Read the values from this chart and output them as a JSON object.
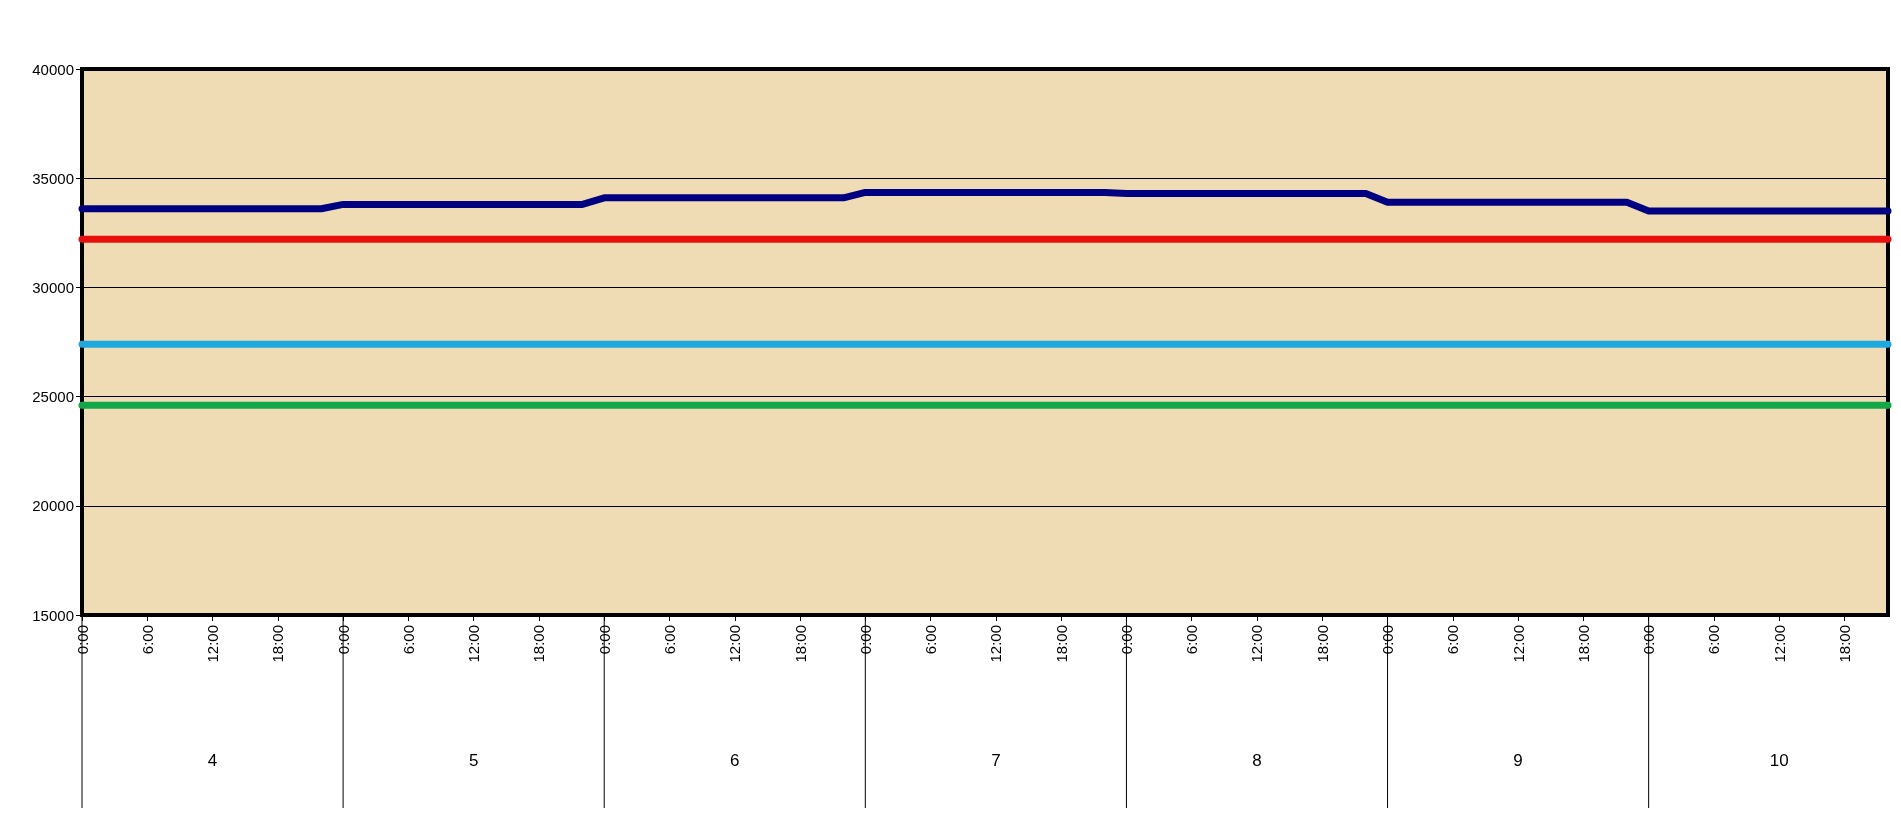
{
  "chart_data": {
    "type": "line",
    "grid": "y",
    "marker": "none",
    "line_style": "solid",
    "ylim": [
      15000,
      40000
    ],
    "yticks": [
      15000,
      20000,
      25000,
      30000,
      35000,
      40000
    ],
    "categories": [
      "0:00",
      null,
      null,
      "6:00",
      null,
      null,
      "12:00",
      null,
      null,
      "18:00",
      null,
      null,
      "0:00",
      null,
      null,
      "6:00",
      null,
      null,
      "12:00",
      null,
      null,
      "18:00",
      null,
      null,
      "0:00",
      null,
      null,
      "6:00",
      null,
      null,
      "12:00",
      null,
      null,
      "18:00",
      null,
      null,
      "0:00",
      null,
      null,
      "6:00",
      null,
      null,
      "12:00",
      null,
      null,
      "18:00",
      null,
      null,
      "0:00",
      null,
      null,
      "6:00",
      null,
      null,
      "12:00",
      null,
      null,
      "18:00",
      null,
      null,
      "0:00",
      null,
      null,
      "6:00",
      null,
      null,
      "12:00",
      null,
      null,
      "18:00",
      null,
      null,
      "0:00",
      null,
      null,
      "6:00",
      null,
      null,
      "12:00",
      null,
      null,
      "18:00",
      null,
      null
    ],
    "annotations": [
      "4",
      "5",
      "6",
      "7",
      "8",
      "9",
      "10"
    ],
    "series": [
      {
        "color": "#000080",
        "values": [
          33600,
          33600,
          33600,
          33600,
          33600,
          33600,
          33600,
          33600,
          33600,
          33600,
          33600,
          33600,
          33800,
          33800,
          33800,
          33800,
          33800,
          33800,
          33800,
          33800,
          33800,
          33800,
          33800,
          33800,
          34100,
          34100,
          34100,
          34100,
          34100,
          34100,
          34100,
          34100,
          34100,
          34100,
          34100,
          34100,
          34350,
          34350,
          34350,
          34350,
          34350,
          34350,
          34350,
          34350,
          34350,
          34350,
          34350,
          34350,
          34300,
          34300,
          34300,
          34300,
          34300,
          34300,
          34300,
          34300,
          34300,
          34300,
          34300,
          34300,
          33900,
          33900,
          33900,
          33900,
          33900,
          33900,
          33900,
          33900,
          33900,
          33900,
          33900,
          33900,
          33500,
          33500,
          33500,
          33500,
          33500,
          33500,
          33500,
          33500,
          33500,
          33500,
          33500,
          33500
        ]
      },
      {
        "color": "#e8100c",
        "values": [
          32200,
          32200,
          32200,
          32200,
          32200,
          32200,
          32200,
          32200,
          32200,
          32200,
          32200,
          32200,
          32200,
          32200,
          32200,
          32200,
          32200,
          32200,
          32200,
          32200,
          32200,
          32200,
          32200,
          32200,
          32200,
          32200,
          32200,
          32200,
          32200,
          32200,
          32200,
          32200,
          32200,
          32200,
          32200,
          32200,
          32200,
          32200,
          32200,
          32200,
          32200,
          32200,
          32200,
          32200,
          32200,
          32200,
          32200,
          32200,
          32200,
          32200,
          32200,
          32200,
          32200,
          32200,
          32200,
          32200,
          32200,
          32200,
          32200,
          32200,
          32200,
          32200,
          32200,
          32200,
          32200,
          32200,
          32200,
          32200,
          32200,
          32200,
          32200,
          32200,
          32200,
          32200,
          32200,
          32200,
          32200,
          32200,
          32200,
          32200,
          32200,
          32200,
          32200,
          32200
        ]
      },
      {
        "color": "#1ea9de",
        "values": [
          27400,
          27400,
          27400,
          27400,
          27400,
          27400,
          27400,
          27400,
          27400,
          27400,
          27400,
          27400,
          27400,
          27400,
          27400,
          27400,
          27400,
          27400,
          27400,
          27400,
          27400,
          27400,
          27400,
          27400,
          27400,
          27400,
          27400,
          27400,
          27400,
          27400,
          27400,
          27400,
          27400,
          27400,
          27400,
          27400,
          27400,
          27400,
          27400,
          27400,
          27400,
          27400,
          27400,
          27400,
          27400,
          27400,
          27400,
          27400,
          27400,
          27400,
          27400,
          27400,
          27400,
          27400,
          27400,
          27400,
          27400,
          27400,
          27400,
          27400,
          27400,
          27400,
          27400,
          27400,
          27400,
          27400,
          27400,
          27400,
          27400,
          27400,
          27400,
          27400,
          27400,
          27400,
          27400,
          27400,
          27400,
          27400,
          27400,
          27400,
          27400,
          27400,
          27400,
          27400
        ]
      },
      {
        "color": "#12a84a",
        "values": [
          24600,
          24600,
          24600,
          24600,
          24600,
          24600,
          24600,
          24600,
          24600,
          24600,
          24600,
          24600,
          24600,
          24600,
          24600,
          24600,
          24600,
          24600,
          24600,
          24600,
          24600,
          24600,
          24600,
          24600,
          24600,
          24600,
          24600,
          24600,
          24600,
          24600,
          24600,
          24600,
          24600,
          24600,
          24600,
          24600,
          24600,
          24600,
          24600,
          24600,
          24600,
          24600,
          24600,
          24600,
          24600,
          24600,
          24600,
          24600,
          24600,
          24600,
          24600,
          24600,
          24600,
          24600,
          24600,
          24600,
          24600,
          24600,
          24600,
          24600,
          24600,
          24600,
          24600,
          24600,
          24600,
          24600,
          24600,
          24600,
          24600,
          24600,
          24600,
          24600,
          24600,
          24600,
          24600,
          24600,
          24600,
          24600,
          24600,
          24600,
          24600,
          24600,
          24600,
          24600
        ]
      }
    ]
  }
}
